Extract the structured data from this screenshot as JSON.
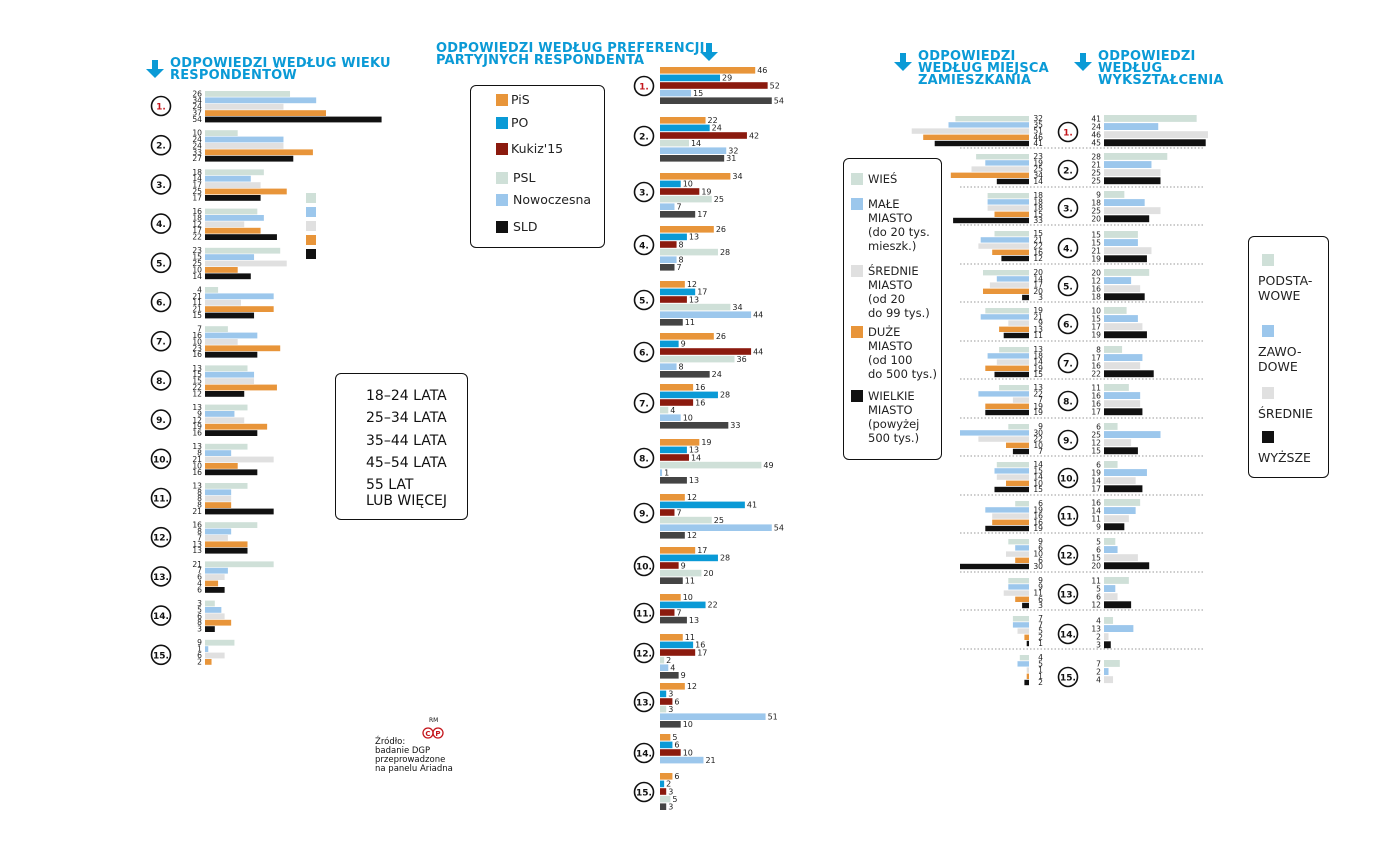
{
  "headers": {
    "age": [
      "ODPOWIEDZI WEDŁUG WIEKU",
      "RESPONDENTÓW"
    ],
    "party": [
      "ODPOWIEDZI WEDŁUG PREFERENCJI",
      "PARTYJNYCH RESPONDENTA"
    ],
    "place": [
      "ODPOWIEDZI",
      "WEDŁUG MIEJSCA",
      "ZAMIESZKANIA"
    ],
    "edu": [
      "ODPOWIEDZI",
      "WEDŁUG",
      "WYKSZTAŁCENIA"
    ]
  },
  "legends": {
    "party": [
      {
        "label": "PiS",
        "color": "#e8953a"
      },
      {
        "label": "PO",
        "color": "#0a9ad6"
      },
      {
        "label": "Kukiz'15",
        "color": "#8b1a0e"
      },
      {
        "label": "PSL",
        "color": "#cfe0d8"
      },
      {
        "label": "Nowoczesna",
        "color": "#9cc7ec"
      },
      {
        "label": "SLD",
        "color": "#111111"
      }
    ],
    "age": [
      "18–24 LATA",
      "25–34 LATA",
      "35–44 LATA",
      "45–54 LATA",
      "55 LAT",
      "LUB WIĘCEJ"
    ],
    "place": [
      {
        "lines": [
          "WIEŚ"
        ],
        "color": "#cfe0d8"
      },
      {
        "lines": [
          "MAŁE",
          "MIASTO",
          "(do 20 tys.",
          "mieszk.)"
        ],
        "color": "#9cc7ec"
      },
      {
        "lines": [
          "ŚREDNIE",
          "MIASTO",
          "(od 20",
          "do 99 tys.)"
        ],
        "color": "#e0e0e0"
      },
      {
        "lines": [
          "DUŻE",
          "MIASTO",
          "(od 100",
          "do 500 tys.)"
        ],
        "color": "#e8953a"
      },
      {
        "lines": [
          "WIELKIE",
          "MIASTO",
          "(powyżej",
          "500 tys.)"
        ],
        "color": "#111111"
      }
    ],
    "edu": [
      {
        "lines": [
          "PODSTA-",
          "WOWE"
        ],
        "color": "#cfe0d8"
      },
      {
        "lines": [
          "ZAWO-",
          "DOWE"
        ],
        "color": "#9cc7ec"
      },
      {
        "lines": [
          "ŚREDNIE"
        ],
        "color": "#e0e0e0"
      },
      {
        "lines": [
          "WYŻSZE"
        ],
        "color": "#111111"
      }
    ]
  },
  "source": [
    "Źródło:",
    "badanie DGP",
    "przeprowadzone",
    "na panelu Ariadna"
  ],
  "logo_text": "RM",
  "chart_data": [
    {
      "type": "bar",
      "id": "age",
      "categories": [
        "1.",
        "2.",
        "3.",
        "4.",
        "5.",
        "6.",
        "7.",
        "8.",
        "9.",
        "10.",
        "11.",
        "12.",
        "13.",
        "14.",
        "15."
      ],
      "series_colors": [
        "#cfe0d8",
        "#9cc7ec",
        "#e0e0e0",
        "#e8953a",
        "#111111"
      ],
      "values": [
        [
          26,
          34,
          24,
          37,
          54
        ],
        [
          10,
          24,
          24,
          33,
          27
        ],
        [
          18,
          14,
          17,
          25,
          17
        ],
        [
          16,
          18,
          12,
          17,
          22
        ],
        [
          23,
          15,
          25,
          10,
          14
        ],
        [
          4,
          21,
          11,
          21,
          15
        ],
        [
          7,
          16,
          10,
          23,
          16
        ],
        [
          13,
          15,
          15,
          22,
          12
        ],
        [
          13,
          9,
          12,
          19,
          16
        ],
        [
          13,
          8,
          21,
          10,
          16
        ],
        [
          13,
          8,
          8,
          8,
          21
        ],
        [
          16,
          8,
          7,
          13,
          13
        ],
        [
          21,
          7,
          6,
          4,
          6
        ],
        [
          3,
          5,
          6,
          8,
          3
        ],
        [
          9,
          1,
          6,
          2,
          null
        ]
      ]
    },
    {
      "type": "bar",
      "id": "party",
      "categories": [
        "1.",
        "2.",
        "3.",
        "4.",
        "5.",
        "6.",
        "7.",
        "8.",
        "9.",
        "10.",
        "11.",
        "12.",
        "13.",
        "14.",
        "15."
      ],
      "series": [
        {
          "name": "PiS",
          "color": "#e8953a"
        },
        {
          "name": "PO",
          "color": "#0a9ad6"
        },
        {
          "name": "Kukiz'15",
          "color": "#8b1a0e"
        },
        {
          "name": "PSL",
          "color": "#cfe0d8"
        },
        {
          "name": "Nowoczesna",
          "color": "#9cc7ec"
        },
        {
          "name": "SLD",
          "color": "#444444"
        }
      ],
      "values": [
        [
          46,
          29,
          52,
          null,
          15,
          54
        ],
        [
          22,
          24,
          42,
          14,
          32,
          31
        ],
        [
          34,
          10,
          19,
          25,
          7,
          17
        ],
        [
          26,
          13,
          8,
          28,
          8,
          7
        ],
        [
          12,
          17,
          13,
          34,
          44,
          11
        ],
        [
          26,
          9,
          44,
          36,
          8,
          24
        ],
        [
          16,
          28,
          16,
          4,
          10,
          33
        ],
        [
          19,
          13,
          14,
          49,
          1,
          13
        ],
        [
          12,
          41,
          7,
          25,
          54,
          12
        ],
        [
          17,
          28,
          9,
          20,
          null,
          11
        ],
        [
          10,
          22,
          7,
          null,
          null,
          13
        ],
        [
          11,
          16,
          17,
          2,
          4,
          9
        ],
        [
          12,
          3,
          6,
          3,
          51,
          10
        ],
        [
          5,
          6,
          10,
          null,
          21,
          null
        ],
        [
          6,
          2,
          3,
          5,
          null,
          3
        ]
      ],
      "extra_labels": {
        "1": [
          {
            "series": 3,
            "text": "42"
          }
        ]
      }
    },
    {
      "type": "bar",
      "id": "place",
      "orientation": "left",
      "series_colors": [
        "#cfe0d8",
        "#9cc7ec",
        "#e0e0e0",
        "#e8953a",
        "#111111"
      ],
      "values": [
        [
          32,
          35,
          51,
          46,
          41
        ],
        [
          23,
          19,
          25,
          34,
          14
        ],
        [
          18,
          18,
          18,
          15,
          33
        ],
        [
          15,
          21,
          22,
          16,
          12
        ],
        [
          20,
          14,
          17,
          20,
          3
        ],
        [
          19,
          21,
          9,
          13,
          11
        ],
        [
          13,
          18,
          14,
          19,
          15
        ],
        [
          13,
          22,
          7,
          19,
          19
        ],
        [
          9,
          30,
          22,
          10,
          7
        ],
        [
          14,
          15,
          14,
          10,
          15
        ],
        [
          6,
          19,
          16,
          16,
          19
        ],
        [
          9,
          6,
          10,
          6,
          30
        ],
        [
          9,
          9,
          11,
          6,
          3
        ],
        [
          7,
          7,
          5,
          2,
          1
        ],
        [
          4,
          5,
          1,
          1,
          2
        ]
      ]
    },
    {
      "type": "bar",
      "id": "edu",
      "categories": [
        "1.",
        "2.",
        "3.",
        "4.",
        "5.",
        "6.",
        "7.",
        "8.",
        "9.",
        "10.",
        "11.",
        "12.",
        "13.",
        "14.",
        "15."
      ],
      "series_colors": [
        "#cfe0d8",
        "#9cc7ec",
        "#e0e0e0",
        "#111111"
      ],
      "values": [
        [
          41,
          24,
          46,
          45
        ],
        [
          28,
          21,
          25,
          25
        ],
        [
          9,
          18,
          25,
          20
        ],
        [
          15,
          15,
          21,
          19
        ],
        [
          20,
          12,
          16,
          18
        ],
        [
          10,
          15,
          17,
          19
        ],
        [
          8,
          17,
          16,
          22
        ],
        [
          11,
          16,
          16,
          17
        ],
        [
          6,
          25,
          12,
          15
        ],
        [
          6,
          19,
          14,
          17
        ],
        [
          16,
          14,
          11,
          9
        ],
        [
          5,
          6,
          15,
          20
        ],
        [
          11,
          5,
          6,
          12
        ],
        [
          4,
          13,
          2,
          3
        ],
        [
          7,
          2,
          4,
          null
        ]
      ]
    }
  ]
}
